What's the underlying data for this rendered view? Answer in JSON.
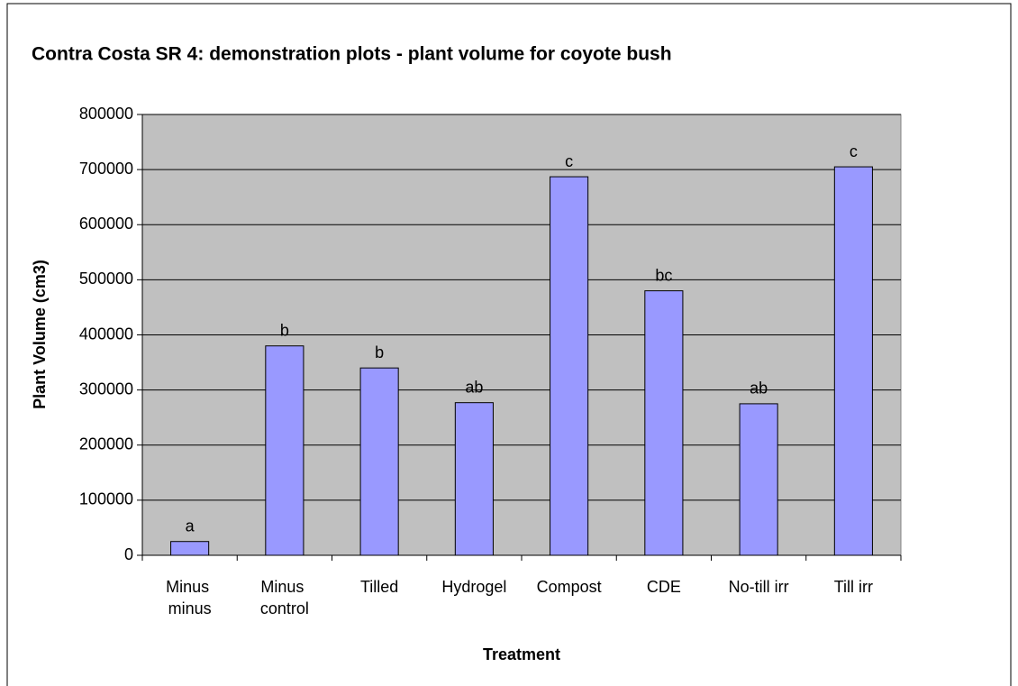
{
  "chart_data": {
    "type": "bar",
    "title": "Contra Costa SR 4: demonstration plots - plant volume for coyote bush",
    "x_label": "Treatment",
    "y_label": "Plant Volume (cm3)",
    "categories": [
      "Minus minus",
      "Minus control",
      "Tilled",
      "Hydrogel",
      "Compost",
      "CDE",
      "No-till irr",
      "Till irr"
    ],
    "values": [
      25000,
      380000,
      340000,
      277000,
      687000,
      480000,
      275000,
      705000
    ],
    "bar_labels": [
      "a",
      "b",
      "b",
      "ab",
      "c",
      "bc",
      "ab",
      "c"
    ],
    "color": "#9999ff",
    "background": "#c0c0c0",
    "ylim": [
      0,
      800000
    ],
    "yticks": [
      0,
      100000,
      200000,
      300000,
      400000,
      500000,
      600000,
      700000,
      800000
    ],
    "grid": true
  }
}
